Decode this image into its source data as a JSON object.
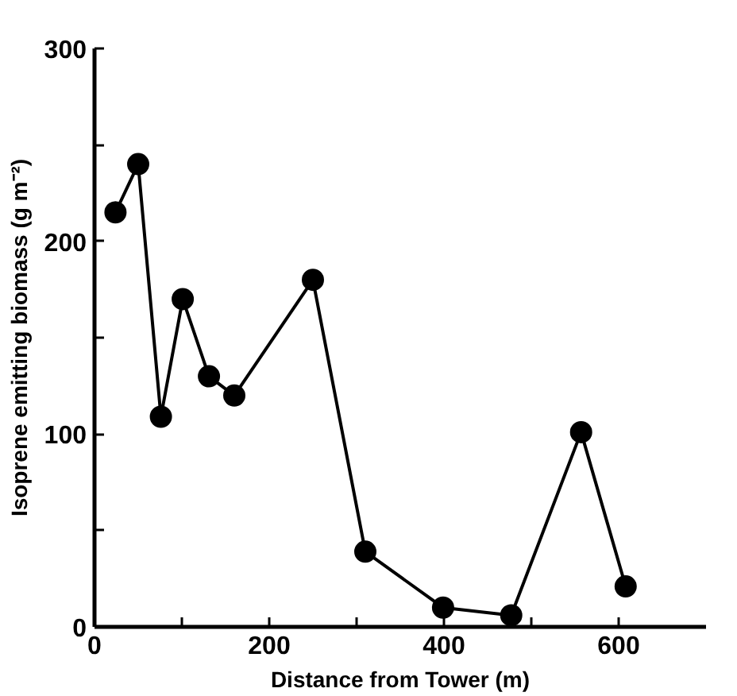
{
  "chart_data": {
    "type": "line",
    "xlabel": "Distance from Tower (m)",
    "ylabel": "Isoprene emitting biomass (g m⁻²)",
    "x": [
      24,
      50,
      76,
      101,
      131,
      160,
      250,
      310,
      399,
      477,
      557,
      608
    ],
    "values": [
      215,
      240,
      109,
      170,
      130,
      120,
      180,
      39,
      10,
      6,
      101,
      21
    ],
    "color": "#000000",
    "marker": "circle",
    "line_style": "solid",
    "grid": false,
    "xlim": [
      0,
      700
    ],
    "ylim": [
      0,
      300
    ],
    "xticks": [
      0,
      {
        "value": 100,
        "label": null
      },
      200,
      {
        "value": 300,
        "label": null
      },
      400,
      {
        "value": 500,
        "label": null
      },
      600
    ],
    "yticks": [
      0,
      {
        "value": 50,
        "label": null
      },
      100,
      {
        "value": 150,
        "label": null
      },
      200,
      {
        "value": 250,
        "label": null
      },
      300
    ]
  }
}
